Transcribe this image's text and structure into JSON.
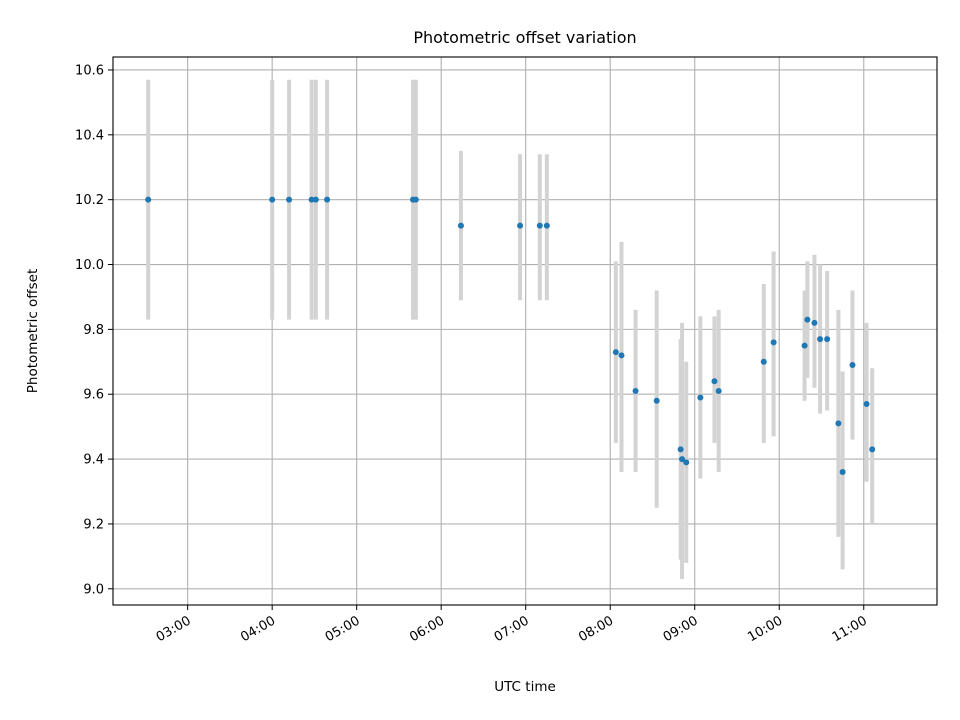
{
  "chart_data": {
    "type": "scatter",
    "title": "Photometric offset variation",
    "xlabel": "UTC time",
    "ylabel": "Photometric offset",
    "xlim": [
      "02:07",
      "11:52"
    ],
    "ylim": [
      8.95,
      10.64
    ],
    "x_ticks": [
      "03:00",
      "04:00",
      "05:00",
      "06:00",
      "07:00",
      "08:00",
      "09:00",
      "10:00",
      "11:00"
    ],
    "y_ticks": [
      "9.0",
      "9.2",
      "9.4",
      "9.6",
      "9.8",
      "10.0",
      "10.2",
      "10.4",
      "10.6"
    ],
    "grid": true,
    "legend": false,
    "series": [
      {
        "marker_color": "#1f77b4",
        "errorbar_color": "#d3d3d3",
        "points": [
          {
            "x": "02:32",
            "y": 10.2,
            "ylo": 9.83,
            "yhi": 10.57
          },
          {
            "x": "04:00",
            "y": 10.2,
            "ylo": 9.83,
            "yhi": 10.57
          },
          {
            "x": "04:12",
            "y": 10.2,
            "ylo": 9.83,
            "yhi": 10.57
          },
          {
            "x": "04:28",
            "y": 10.2,
            "ylo": 9.83,
            "yhi": 10.57
          },
          {
            "x": "04:31",
            "y": 10.2,
            "ylo": 9.83,
            "yhi": 10.57
          },
          {
            "x": "04:39",
            "y": 10.2,
            "ylo": 9.83,
            "yhi": 10.57
          },
          {
            "x": "05:40",
            "y": 10.2,
            "ylo": 9.83,
            "yhi": 10.57
          },
          {
            "x": "05:42",
            "y": 10.2,
            "ylo": 9.83,
            "yhi": 10.57
          },
          {
            "x": "06:14",
            "y": 10.12,
            "ylo": 9.89,
            "yhi": 10.35
          },
          {
            "x": "06:56",
            "y": 10.12,
            "ylo": 9.89,
            "yhi": 10.34
          },
          {
            "x": "07:10",
            "y": 10.12,
            "ylo": 9.89,
            "yhi": 10.34
          },
          {
            "x": "07:15",
            "y": 10.12,
            "ylo": 9.89,
            "yhi": 10.34
          },
          {
            "x": "08:04",
            "y": 9.73,
            "ylo": 9.45,
            "yhi": 10.01
          },
          {
            "x": "08:08",
            "y": 9.72,
            "ylo": 9.36,
            "yhi": 10.07
          },
          {
            "x": "08:18",
            "y": 9.61,
            "ylo": 9.36,
            "yhi": 9.86
          },
          {
            "x": "08:33",
            "y": 9.58,
            "ylo": 9.25,
            "yhi": 9.92
          },
          {
            "x": "08:50",
            "y": 9.43,
            "ylo": 9.09,
            "yhi": 9.77
          },
          {
            "x": "08:51",
            "y": 9.4,
            "ylo": 9.03,
            "yhi": 9.82
          },
          {
            "x": "08:54",
            "y": 9.39,
            "ylo": 9.08,
            "yhi": 9.7
          },
          {
            "x": "09:04",
            "y": 9.59,
            "ylo": 9.34,
            "yhi": 9.84
          },
          {
            "x": "09:14",
            "y": 9.64,
            "ylo": 9.45,
            "yhi": 9.84
          },
          {
            "x": "09:17",
            "y": 9.61,
            "ylo": 9.36,
            "yhi": 9.86
          },
          {
            "x": "09:49",
            "y": 9.7,
            "ylo": 9.45,
            "yhi": 9.94
          },
          {
            "x": "09:56",
            "y": 9.76,
            "ylo": 9.47,
            "yhi": 10.04
          },
          {
            "x": "10:18",
            "y": 9.75,
            "ylo": 9.58,
            "yhi": 9.92
          },
          {
            "x": "10:20",
            "y": 9.83,
            "ylo": 9.65,
            "yhi": 10.01
          },
          {
            "x": "10:25",
            "y": 9.82,
            "ylo": 9.62,
            "yhi": 10.03
          },
          {
            "x": "10:29",
            "y": 9.77,
            "ylo": 9.54,
            "yhi": 10.0
          },
          {
            "x": "10:34",
            "y": 9.77,
            "ylo": 9.55,
            "yhi": 9.98
          },
          {
            "x": "10:42",
            "y": 9.51,
            "ylo": 9.16,
            "yhi": 9.86
          },
          {
            "x": "10:45",
            "y": 9.36,
            "ylo": 9.06,
            "yhi": 9.67
          },
          {
            "x": "10:52",
            "y": 9.69,
            "ylo": 9.46,
            "yhi": 9.92
          },
          {
            "x": "11:02",
            "y": 9.57,
            "ylo": 9.33,
            "yhi": 9.82
          },
          {
            "x": "11:06",
            "y": 9.43,
            "ylo": 9.2,
            "yhi": 9.68
          }
        ]
      }
    ]
  }
}
